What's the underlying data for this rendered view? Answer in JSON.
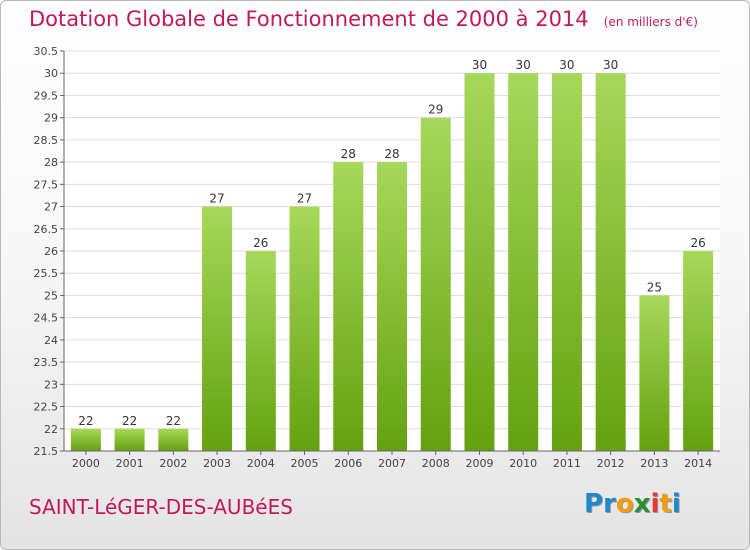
{
  "header": {
    "title": "Dotation Globale de Fonctionnement de 2000 à 2014",
    "subtitle": "(en milliers d'€)"
  },
  "footer": {
    "commune": "SAINT-LéGER-DES-AUBéES",
    "logo_letters": [
      "P",
      "r",
      "o",
      "x",
      "i",
      "t",
      "i"
    ]
  },
  "colors": {
    "title": "#c2185b",
    "bar_top": "#a6d85a",
    "bar_bottom": "#64a10f",
    "logo": [
      "#1e88c8",
      "#1e88c8",
      "#f39c12",
      "#2e8b3a",
      "#e53935",
      "#f39c12",
      "#1e88c8"
    ]
  },
  "chart_data": {
    "type": "bar",
    "title": "Dotation Globale de Fonctionnement de 2000 à 2014",
    "subtitle": "(en milliers d'€)",
    "categories": [
      "2000",
      "2001",
      "2002",
      "2003",
      "2004",
      "2005",
      "2006",
      "2007",
      "2008",
      "2009",
      "2010",
      "2011",
      "2012",
      "2013",
      "2014"
    ],
    "values": [
      22,
      22,
      22,
      27,
      26,
      27,
      28,
      28,
      29,
      30,
      30,
      30,
      30,
      25,
      26
    ],
    "data_labels": [
      "22",
      "22",
      "22",
      "27",
      "26",
      "27",
      "28",
      "28",
      "29",
      "30",
      "30",
      "30",
      "30",
      "25",
      "26"
    ],
    "ylim": [
      21.5,
      30.5
    ],
    "yticks": [
      "21.5",
      "22",
      "22.5",
      "23",
      "23.5",
      "24",
      "24.5",
      "25",
      "25.5",
      "26",
      "26.5",
      "27",
      "27.5",
      "28",
      "28.5",
      "29",
      "29.5",
      "30",
      "30.5"
    ],
    "grid": true,
    "legend": "none"
  }
}
